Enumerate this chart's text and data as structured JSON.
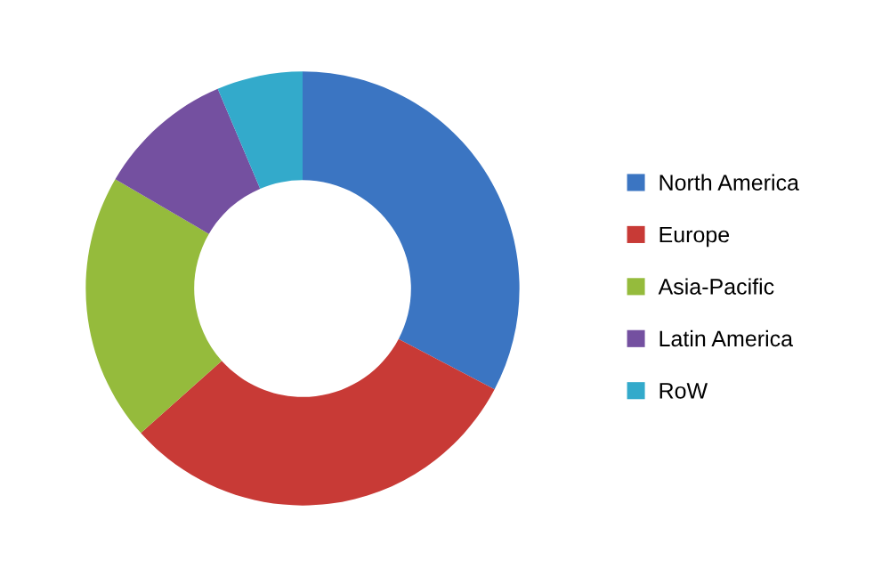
{
  "chart_data": {
    "type": "donut",
    "categories": [
      "North America",
      "Europe",
      "Asia-Pacific",
      "Latin America",
      "RoW"
    ],
    "values": [
      32.7,
      30.7,
      20.0,
      10.2,
      6.4
    ],
    "colors": [
      "#3b75c2",
      "#c83a36",
      "#95bb3c",
      "#7450a0",
      "#33aacb"
    ],
    "legend": "right"
  }
}
